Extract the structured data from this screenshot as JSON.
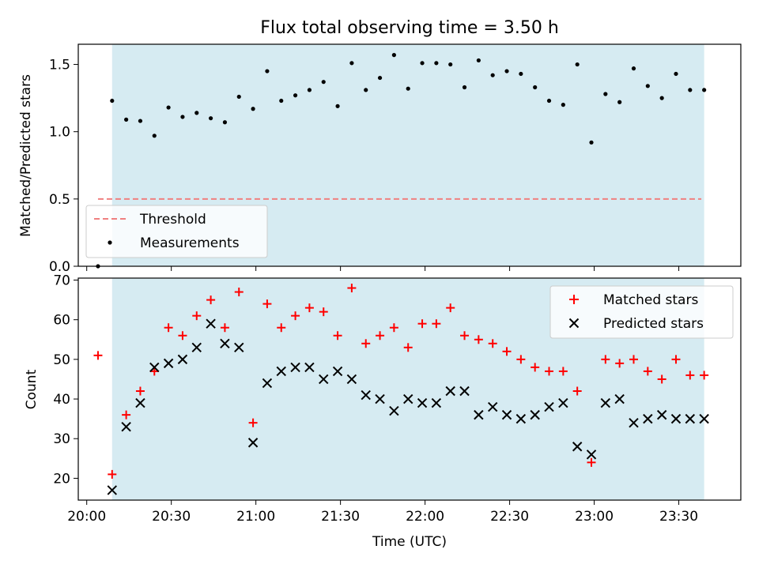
{
  "title": "Flux total observing time = 3.50 h",
  "colors": {
    "shade": "#add8e6",
    "threshold": "#f08080",
    "measurements": "#000000",
    "matched": "#ff0000",
    "predicted": "#000000"
  },
  "chart_data": [
    {
      "type": "scatter",
      "panel": "top",
      "ylabel": "Matched/Predicted stars",
      "ylim": [
        0,
        1.65
      ],
      "yticks": [
        "0.0",
        "0.5",
        "1.0",
        "1.5"
      ],
      "legend_position": "lower-left",
      "shaded_span": [
        "20:09",
        "23:39"
      ],
      "threshold": {
        "name": "Threshold",
        "value": 0.5,
        "x_range": [
          "20:04",
          "23:38"
        ]
      },
      "series": [
        {
          "name": "Measurements",
          "x": [
            "20:04",
            "20:09",
            "20:14",
            "20:19",
            "20:24",
            "20:29",
            "20:34",
            "20:39",
            "20:44",
            "20:49",
            "20:54",
            "20:59",
            "21:04",
            "21:09",
            "21:14",
            "21:19",
            "21:24",
            "21:29",
            "21:34",
            "21:39",
            "21:44",
            "21:49",
            "21:54",
            "21:59",
            "22:04",
            "22:09",
            "22:14",
            "22:19",
            "22:24",
            "22:29",
            "22:34",
            "22:39",
            "22:44",
            "22:49",
            "22:54",
            "22:59",
            "23:04",
            "23:09",
            "23:14",
            "23:19",
            "23:24",
            "23:29",
            "23:34",
            "23:39"
          ],
          "y": [
            0.0,
            1.23,
            1.09,
            1.08,
            0.97,
            1.18,
            1.11,
            1.14,
            1.1,
            1.07,
            1.26,
            1.17,
            1.45,
            1.23,
            1.27,
            1.31,
            1.37,
            1.19,
            1.51,
            1.31,
            1.4,
            1.57,
            1.32,
            1.51,
            1.51,
            1.5,
            1.33,
            1.53,
            1.42,
            1.45,
            1.43,
            1.33,
            1.23,
            1.2,
            1.5,
            0.92,
            1.28,
            1.22,
            1.47,
            1.34,
            1.25,
            1.43,
            1.31,
            1.31
          ]
        }
      ]
    },
    {
      "type": "scatter",
      "panel": "bottom",
      "xlabel": "Time (UTC)",
      "ylabel": "Count",
      "ylim": [
        14.5,
        70.5
      ],
      "yticks": [
        "20",
        "30",
        "40",
        "50",
        "60",
        "70"
      ],
      "xticks": [
        "20:00",
        "20:30",
        "21:00",
        "21:30",
        "22:00",
        "22:30",
        "23:00",
        "23:30"
      ],
      "xlim": [
        "19:57",
        "23:52"
      ],
      "legend_position": "upper-right",
      "series": [
        {
          "name": "Matched stars",
          "x": [
            "20:04",
            "20:09",
            "20:14",
            "20:19",
            "20:24",
            "20:29",
            "20:34",
            "20:39",
            "20:44",
            "20:49",
            "20:54",
            "20:59",
            "21:04",
            "21:09",
            "21:14",
            "21:19",
            "21:24",
            "21:29",
            "21:34",
            "21:39",
            "21:44",
            "21:49",
            "21:54",
            "21:59",
            "22:04",
            "22:09",
            "22:14",
            "22:19",
            "22:24",
            "22:29",
            "22:34",
            "22:39",
            "22:44",
            "22:49",
            "22:54",
            "22:59",
            "23:04",
            "23:09",
            "23:14",
            "23:19",
            "23:24",
            "23:29",
            "23:34",
            "23:39"
          ],
          "y": [
            51,
            21,
            36,
            42,
            47,
            58,
            56,
            61,
            65,
            58,
            67,
            34,
            64,
            58,
            61,
            63,
            62,
            56,
            68,
            54,
            56,
            58,
            53,
            59,
            59,
            63,
            56,
            55,
            54,
            52,
            50,
            48,
            47,
            47,
            42,
            24,
            50,
            49,
            50,
            47,
            45,
            50,
            46,
            46
          ]
        },
        {
          "name": "Predicted stars",
          "x": [
            "20:09",
            "20:14",
            "20:19",
            "20:24",
            "20:29",
            "20:34",
            "20:39",
            "20:44",
            "20:49",
            "20:54",
            "20:59",
            "21:04",
            "21:09",
            "21:14",
            "21:19",
            "21:24",
            "21:29",
            "21:34",
            "21:39",
            "21:44",
            "21:49",
            "21:54",
            "21:59",
            "22:04",
            "22:09",
            "22:14",
            "22:19",
            "22:24",
            "22:29",
            "22:34",
            "22:39",
            "22:44",
            "22:49",
            "22:54",
            "22:59",
            "23:04",
            "23:09",
            "23:14",
            "23:19",
            "23:24",
            "23:29",
            "23:34",
            "23:39"
          ],
          "y": [
            17,
            33,
            39,
            48,
            49,
            50,
            53,
            59,
            54,
            53,
            29,
            44,
            47,
            48,
            48,
            45,
            47,
            45,
            41,
            40,
            37,
            40,
            39,
            39,
            42,
            42,
            36,
            38,
            36,
            35,
            36,
            38,
            39,
            28,
            26,
            39,
            40,
            34,
            35,
            36,
            35,
            35,
            35
          ]
        }
      ]
    }
  ]
}
